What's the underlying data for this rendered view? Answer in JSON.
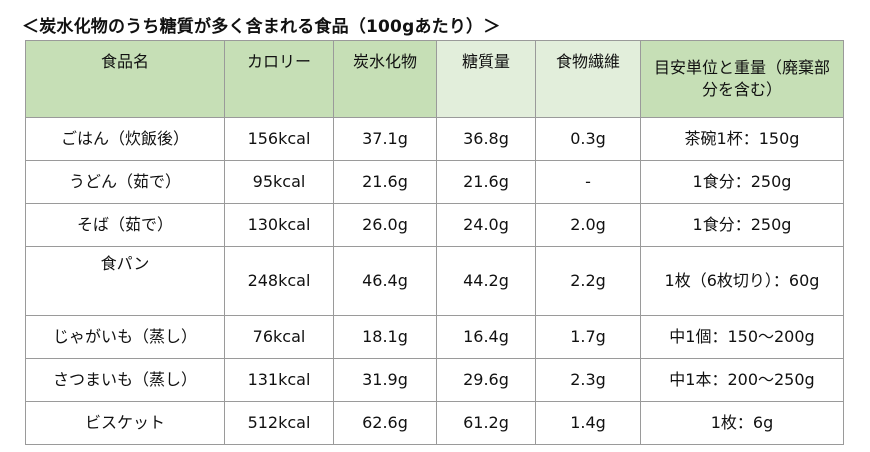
{
  "title": "＜炭水化物のうち糖質が多く含まれる食品（100gあたり）＞",
  "headers": [
    "食品名",
    "カロリー",
    "炭水化物",
    "糖質量",
    "食物繊維",
    "目安単位と重量（廃棄部分を含む）"
  ],
  "rows": [
    [
      "ごはん（炊飯後）",
      "156kcal",
      "37.1g",
      "36.8g",
      "0.3g",
      "茶碗1杯：150g"
    ],
    [
      "うどん（茹で）",
      "95kcal",
      "21.6g",
      "21.6g",
      "-",
      "1食分：250g"
    ],
    [
      "そば（茹で）",
      "130kcal",
      "26.0g",
      "24.0g",
      "2.0g",
      "1食分：250g"
    ],
    [
      "食パン",
      "248kcal",
      "46.4g",
      "44.2g",
      "2.2g",
      "1枚（6枚切り）：60g"
    ],
    [
      "じゃがいも（蒸し）",
      "76kcal",
      "18.1g",
      "16.4g",
      "1.7g",
      "中1個：150〜200g"
    ],
    [
      "さつまいも（蒸し）",
      "131kcal",
      "31.9g",
      "29.6g",
      "2.3g",
      "中1本：200〜250g"
    ],
    [
      "ビスケット",
      "512kcal",
      "62.6g",
      "61.2g",
      "1.4g",
      "1枚：6g"
    ]
  ],
  "colors": {
    "header_dark": "#c6dfb6",
    "header_light": "#e2eedb",
    "border": "#9a9a9a"
  }
}
